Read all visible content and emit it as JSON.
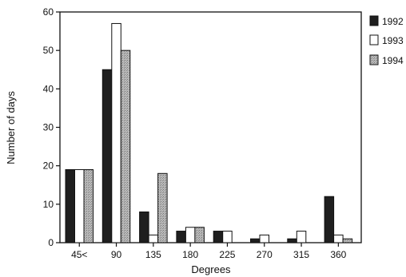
{
  "chart_data": {
    "type": "bar",
    "title": "",
    "xlabel": "Degrees",
    "ylabel": "Number of days",
    "categories": [
      "45<",
      "90",
      "135",
      "180",
      "225",
      "270",
      "315",
      "360"
    ],
    "ylim": [
      0,
      60
    ],
    "yticks": [
      0,
      10,
      20,
      30,
      40,
      50,
      60
    ],
    "grid": false,
    "legend_position": "right",
    "series": [
      {
        "name": "1992",
        "color": "#1f1f1f",
        "values": [
          19,
          45,
          8,
          3,
          3,
          1,
          1,
          12
        ]
      },
      {
        "name": "1993",
        "color": "#ffffff",
        "values": [
          19,
          57,
          2,
          4,
          3,
          2,
          3,
          2
        ]
      },
      {
        "name": "1994",
        "color": "#a8a8a8",
        "values": [
          19,
          50,
          18,
          4,
          0,
          0,
          0,
          1
        ]
      }
    ]
  }
}
